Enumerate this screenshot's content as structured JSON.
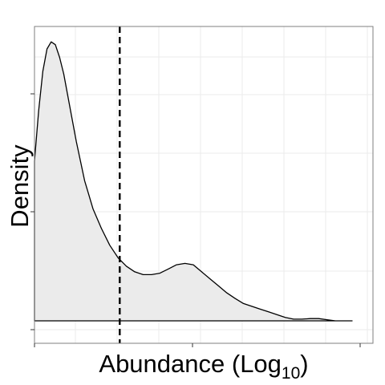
{
  "chart_data": {
    "type": "area",
    "title": "",
    "xlabel": "Abundance (Log",
    "xlabel_subscript": "10",
    "xlabel_suffix": ")",
    "ylabel": "Density",
    "x_tick_labels": [],
    "y_tick_labels": [],
    "grid": true,
    "legend": "none",
    "colors": {
      "panel_border": "#7f7f7f",
      "grid": "#ebebeb",
      "fill": "#ebebeb",
      "line": "#000000",
      "threshold": "#000000"
    },
    "xlim": [
      0,
      40.5
    ],
    "ylim": [
      -0.8,
      10.5
    ],
    "series": [
      {
        "x": [
          0,
          0.5,
          1,
          1.5,
          2,
          2.5,
          3,
          3.5,
          4,
          4.5,
          5,
          5.5,
          6,
          6.5,
          7,
          8,
          9,
          10,
          11,
          12,
          13,
          14,
          15,
          16,
          17,
          18,
          19,
          20,
          21,
          22,
          23,
          24,
          25,
          26,
          27,
          28,
          29,
          30,
          31,
          32,
          33,
          34,
          35,
          36,
          37,
          38
        ],
        "y": [
          5.7,
          7.5,
          8.9,
          9.7,
          9.95,
          9.85,
          9.4,
          8.8,
          8.0,
          7.2,
          6.4,
          5.7,
          5.0,
          4.5,
          4.0,
          3.3,
          2.7,
          2.25,
          1.95,
          1.75,
          1.65,
          1.65,
          1.7,
          1.85,
          2.0,
          2.05,
          2.0,
          1.75,
          1.5,
          1.25,
          1.0,
          0.8,
          0.62,
          0.52,
          0.42,
          0.32,
          0.22,
          0.12,
          0.06,
          0.06,
          0.08,
          0.08,
          0.04,
          0.0,
          0.0,
          0.0
        ]
      }
    ],
    "vline_x": 10.2
  }
}
